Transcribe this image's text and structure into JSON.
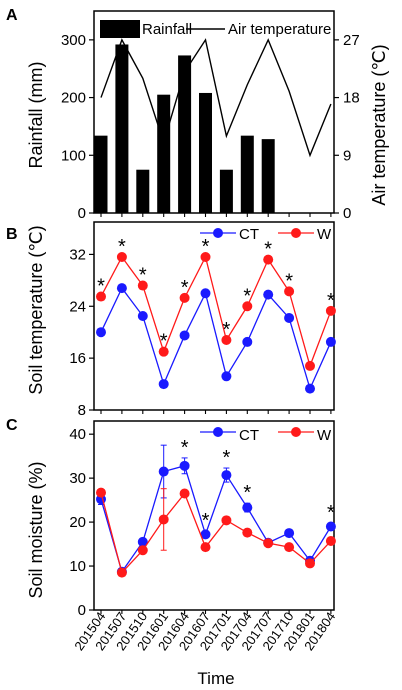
{
  "panel_letters": [
    "A",
    "B",
    "C"
  ],
  "xlabel": "Time",
  "colors": {
    "ct": "#1a1aff",
    "w": "#ff1a1a",
    "rain": "#000000",
    "temp": "#000000"
  },
  "chart_data": [
    {
      "panel": "A",
      "type": "bar+line",
      "categories": [
        "201504",
        "201507",
        "201510",
        "201601",
        "201604",
        "201607",
        "201701",
        "201704",
        "201707",
        "201710",
        "201801",
        "201804"
      ],
      "series": [
        {
          "name": "Rainfall",
          "type": "bar",
          "axis": "left",
          "values": [
            134,
            292,
            75,
            205,
            273,
            208,
            75,
            134,
            128,
            null,
            null,
            null
          ]
        },
        {
          "name": "Air temperature",
          "type": "line",
          "axis": "right",
          "values": [
            18,
            27,
            21,
            11,
            22,
            27,
            12,
            20,
            27,
            19,
            9,
            17
          ]
        }
      ],
      "ylabel": "Rainfall (mm)",
      "y2label": "Air temperature (℃)",
      "ylim": [
        0,
        350
      ],
      "yticks": [
        0,
        100,
        200,
        300
      ],
      "y2lim": [
        0,
        31.5
      ],
      "y2ticks": [
        0,
        9,
        18,
        27
      ],
      "legend": "top"
    },
    {
      "panel": "B",
      "type": "line",
      "categories": [
        "201504",
        "201507",
        "201510",
        "201601",
        "201604",
        "201607",
        "201701",
        "201704",
        "201707",
        "201710",
        "201801",
        "201804"
      ],
      "series": [
        {
          "name": "CT",
          "values": [
            20,
            26.8,
            22.5,
            12,
            19.5,
            26,
            13.2,
            18.5,
            25.8,
            22.2,
            11.3,
            18.5
          ]
        },
        {
          "name": "W",
          "values": [
            25.5,
            31.6,
            27.2,
            17,
            25.3,
            31.6,
            18.8,
            24,
            31.2,
            26.3,
            14.8,
            23.3
          ]
        }
      ],
      "significance": [
        "*",
        "*",
        "*",
        "*",
        "*",
        "*",
        "*",
        "*",
        "*",
        "*",
        "",
        "*"
      ],
      "ylabel": "Soil temperature (℃)",
      "ylim": [
        8,
        37
      ],
      "yticks": [
        8,
        16,
        24,
        32
      ],
      "legend": "top-right"
    },
    {
      "panel": "C",
      "type": "line",
      "categories": [
        "201504",
        "201507",
        "201510",
        "201601",
        "201604",
        "201607",
        "201701",
        "201704",
        "201707",
        "201710",
        "201801",
        "201804"
      ],
      "series": [
        {
          "name": "CT",
          "values": [
            25.2,
            8.7,
            15.5,
            31.5,
            32.8,
            17.2,
            30.7,
            23.3,
            15.3,
            17.5,
            11.2,
            19
          ],
          "error": [
            1.2,
            0.6,
            0.8,
            6,
            1.8,
            0.8,
            1.6,
            1,
            0.6,
            0.8,
            0.6,
            0.8
          ]
        },
        {
          "name": "W",
          "values": [
            26.7,
            8.5,
            13.6,
            20.6,
            26.5,
            14.3,
            20.4,
            17.6,
            15.2,
            14.3,
            10.6,
            15.7
          ],
          "error": [
            0.8,
            0.6,
            0.8,
            7,
            0.8,
            0.6,
            0.8,
            0.6,
            0.6,
            0.6,
            0.6,
            0.8
          ]
        }
      ],
      "significance": [
        "",
        "",
        "",
        "",
        "*",
        "*",
        "*",
        "*",
        "",
        "",
        "",
        "*"
      ],
      "ylabel": "Soil moisture (%)",
      "ylim": [
        0,
        43
      ],
      "yticks": [
        0,
        10,
        20,
        30,
        40
      ],
      "legend": "top-right"
    }
  ]
}
